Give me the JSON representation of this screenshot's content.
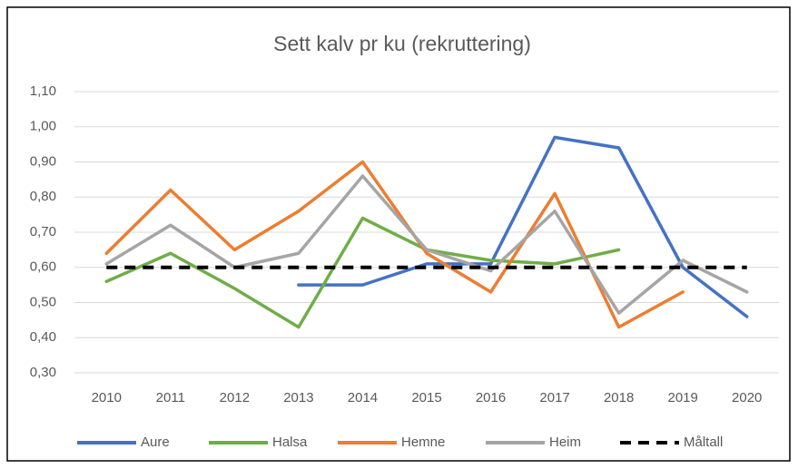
{
  "chart_data": {
    "type": "line",
    "title": "Sett kalv pr ku (rekruttering)",
    "categories": [
      "2010",
      "2011",
      "2012",
      "2013",
      "2014",
      "2015",
      "2016",
      "2017",
      "2018",
      "2019",
      "2020"
    ],
    "series": [
      {
        "name": "Aure",
        "color": "#4472c4",
        "values": [
          null,
          null,
          null,
          0.55,
          0.55,
          0.61,
          0.61,
          0.97,
          0.94,
          0.6,
          0.46
        ]
      },
      {
        "name": "Halsa",
        "color": "#70ad47",
        "values": [
          0.56,
          0.64,
          0.54,
          0.43,
          0.74,
          0.65,
          0.62,
          0.61,
          0.65,
          null,
          null
        ]
      },
      {
        "name": "Hemne",
        "color": "#ed7d31",
        "values": [
          0.64,
          0.82,
          0.65,
          0.76,
          0.9,
          0.64,
          0.53,
          0.81,
          0.43,
          0.53,
          null
        ]
      },
      {
        "name": "Heim",
        "color": "#a5a5a5",
        "values": [
          0.61,
          0.72,
          0.6,
          0.64,
          0.86,
          0.65,
          0.59,
          0.76,
          0.47,
          0.62,
          0.53
        ]
      },
      {
        "name": "Måltall",
        "color": "#000000",
        "dashed": true,
        "values": [
          0.6,
          0.6,
          0.6,
          0.6,
          0.6,
          0.6,
          0.6,
          0.6,
          0.6,
          0.6,
          0.6
        ]
      }
    ],
    "ylim": [
      0.3,
      1.1
    ],
    "yticks": [
      {
        "value": 0.3,
        "label": "0,30"
      },
      {
        "value": 0.4,
        "label": "0,40"
      },
      {
        "value": 0.5,
        "label": "0,50"
      },
      {
        "value": 0.6,
        "label": "0,60"
      },
      {
        "value": 0.7,
        "label": "0,70"
      },
      {
        "value": 0.8,
        "label": "0,80"
      },
      {
        "value": 0.9,
        "label": "0,90"
      },
      {
        "value": 1.0,
        "label": "1,00"
      },
      {
        "value": 1.1,
        "label": "1,10"
      }
    ],
    "grid": true,
    "legend": "bottom"
  }
}
